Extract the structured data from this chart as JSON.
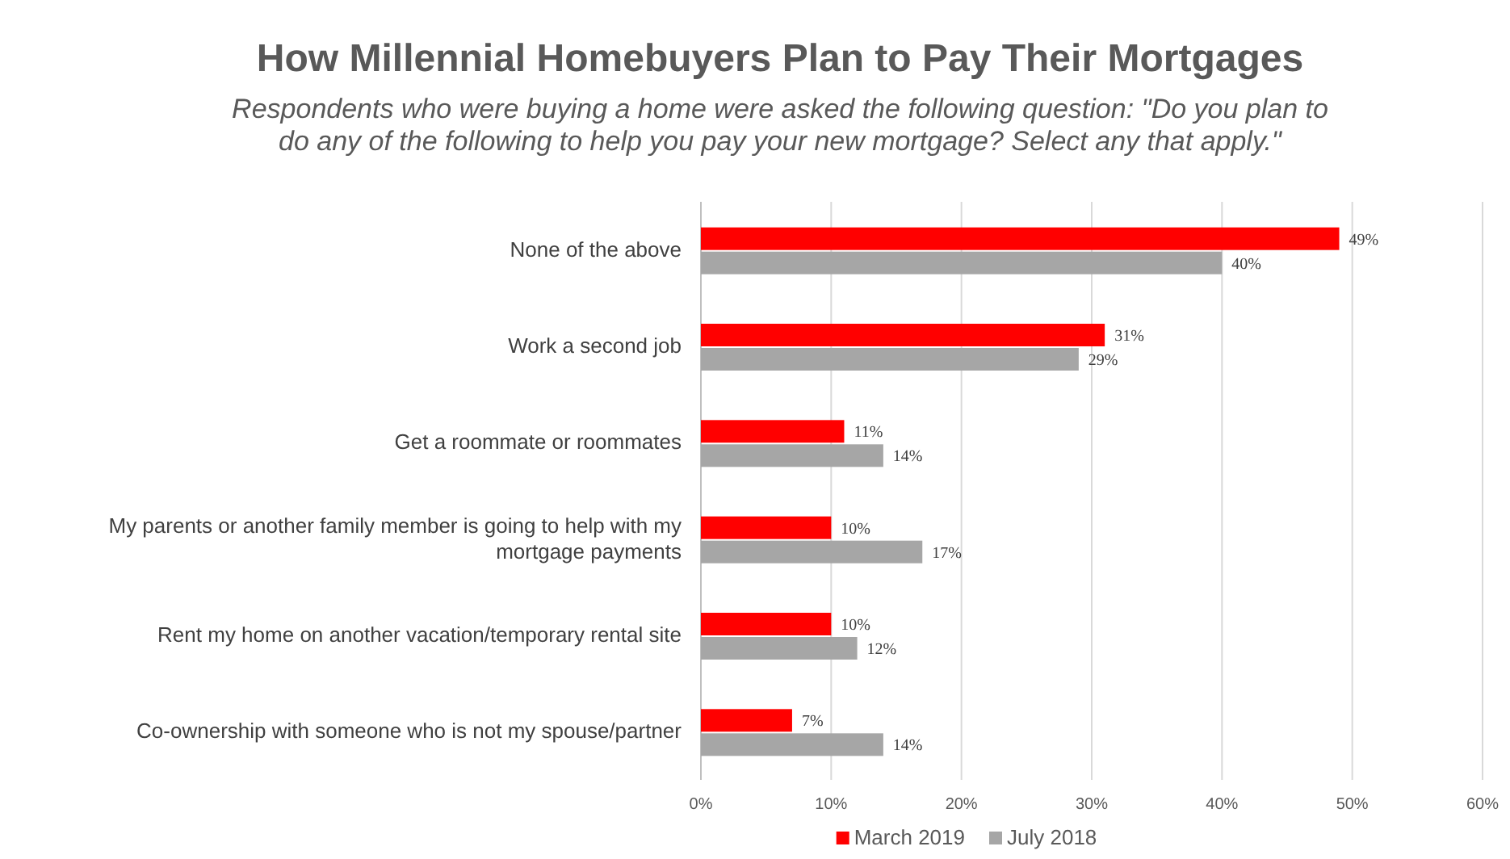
{
  "chart_data": {
    "type": "bar",
    "orientation": "horizontal",
    "title": "How Millennial Homebuyers Plan to Pay Their Mortgages",
    "subtitle": "Respondents who were buying a home were asked the following question: \"Do you plan to do any of the following to help you pay your new mortgage? Select any that apply.\"",
    "categories": [
      "None of the above",
      "Work a second job",
      "Get a roommate or roommates",
      "My parents or another family member is going to help with my mortgage payments",
      "Rent my home on another vacation/temporary rental site",
      "Co-ownership with someone who is not my spouse/partner"
    ],
    "series": [
      {
        "name": "March 2019",
        "color": "#ff0000",
        "values": [
          49,
          31,
          11,
          10,
          10,
          7
        ],
        "value_labels": [
          "49%",
          "31%",
          "11%",
          "10%",
          "10%",
          "7%"
        ]
      },
      {
        "name": "July 2018",
        "color": "#a6a6a6",
        "values": [
          40,
          29,
          14,
          17,
          12,
          14
        ],
        "value_labels": [
          "40%",
          "29%",
          "14%",
          "17%",
          "12%",
          "14%"
        ]
      }
    ],
    "xlim": [
      0,
      60
    ],
    "xticks": [
      {
        "value": 0,
        "label": "0%"
      },
      {
        "value": 10,
        "label": "10%"
      },
      {
        "value": 20,
        "label": "20%"
      },
      {
        "value": 30,
        "label": "30%"
      },
      {
        "value": 40,
        "label": "40%"
      },
      {
        "value": 50,
        "label": "50%"
      },
      {
        "value": 60,
        "label": "60%"
      }
    ],
    "grid": "x",
    "legend": "bottom"
  }
}
